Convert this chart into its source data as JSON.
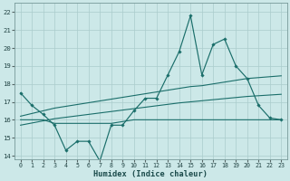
{
  "xlabel": "Humidex (Indice chaleur)",
  "background_color": "#cce8e8",
  "grid_color": "#aacccc",
  "line_color": "#1a6e6a",
  "x": [
    0,
    1,
    2,
    3,
    4,
    5,
    6,
    7,
    8,
    9,
    10,
    11,
    12,
    13,
    14,
    15,
    16,
    17,
    18,
    19,
    20,
    21,
    22,
    23
  ],
  "line_jagged": [
    17.5,
    16.8,
    16.3,
    15.7,
    14.3,
    14.8,
    14.8,
    13.7,
    15.7,
    15.7,
    16.5,
    17.2,
    17.2,
    18.5,
    19.8,
    21.8,
    18.5,
    20.2,
    20.5,
    19.0,
    18.3,
    16.8,
    16.1,
    16.0
  ],
  "line_upper": [
    16.2,
    16.35,
    16.5,
    16.65,
    16.75,
    16.85,
    16.95,
    17.05,
    17.15,
    17.25,
    17.35,
    17.45,
    17.55,
    17.65,
    17.75,
    17.85,
    17.9,
    18.0,
    18.1,
    18.2,
    18.3,
    18.35,
    18.4,
    18.45
  ],
  "line_lower": [
    15.7,
    15.82,
    15.94,
    16.06,
    16.14,
    16.22,
    16.3,
    16.38,
    16.46,
    16.54,
    16.62,
    16.7,
    16.78,
    16.86,
    16.94,
    17.0,
    17.06,
    17.12,
    17.18,
    17.24,
    17.3,
    17.34,
    17.38,
    17.42
  ],
  "line_flat": [
    16.0,
    16.0,
    16.0,
    15.8,
    15.8,
    15.8,
    15.8,
    15.8,
    15.8,
    15.9,
    16.0,
    16.0,
    16.0,
    16.0,
    16.0,
    16.0,
    16.0,
    16.0,
    16.0,
    16.0,
    16.0,
    16.0,
    16.0,
    16.0
  ],
  "ylim": [
    13.8,
    22.5
  ],
  "xlim": [
    -0.5,
    23.5
  ],
  "yticks": [
    14,
    15,
    16,
    17,
    18,
    19,
    20,
    21,
    22
  ],
  "xticks": [
    0,
    1,
    2,
    3,
    4,
    5,
    6,
    7,
    8,
    9,
    10,
    11,
    12,
    13,
    14,
    15,
    16,
    17,
    18,
    19,
    20,
    21,
    22,
    23
  ]
}
